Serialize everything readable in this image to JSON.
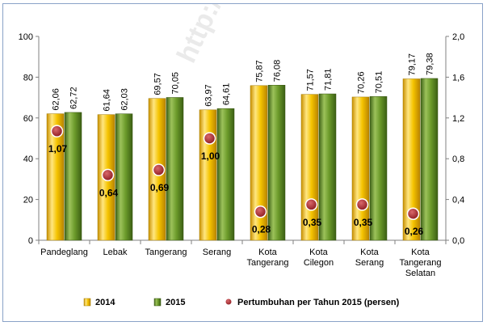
{
  "chart_data": {
    "type": "bar",
    "categories": [
      [
        "Pandeglang"
      ],
      [
        "Lebak"
      ],
      [
        "Tangerang"
      ],
      [
        "Serang"
      ],
      [
        "Kota",
        "Tangerang"
      ],
      [
        "Kota",
        "Cilegon"
      ],
      [
        "Kota",
        "Serang"
      ],
      [
        "Kota",
        "Tangerang",
        "Selatan"
      ]
    ],
    "series": [
      {
        "name": "2014",
        "color": "#f2c21e",
        "axis": "left",
        "values": [
          62.06,
          61.64,
          69.57,
          63.97,
          75.87,
          71.57,
          70.26,
          79.17
        ],
        "labels": [
          "62,06",
          "61,64",
          "69,57",
          "63,97",
          "75,87",
          "71,57",
          "70,26",
          "79,17"
        ]
      },
      {
        "name": "2015",
        "color": "#6f9a2e",
        "axis": "left",
        "values": [
          62.72,
          62.03,
          70.05,
          64.61,
          76.08,
          71.81,
          70.51,
          79.38
        ],
        "labels": [
          "62,72",
          "62,03",
          "70,05",
          "64,61",
          "76,08",
          "71,81",
          "70,51",
          "79,38"
        ]
      },
      {
        "name": "Pertumbuhan per Tahun 2015 (persen)",
        "type": "scatter",
        "color": "#a83236",
        "axis": "right",
        "values": [
          1.07,
          0.64,
          0.69,
          1.0,
          0.28,
          0.35,
          0.35,
          0.26
        ],
        "labels": [
          "1,07",
          "0,64",
          "0,69",
          "1,00",
          "0,28",
          "0,35",
          "0,35",
          "0,26"
        ]
      }
    ],
    "ylim": [
      0,
      100
    ],
    "yticks": [
      "0",
      "20",
      "40",
      "60",
      "80",
      "100"
    ],
    "y2lim": [
      0,
      2.0
    ],
    "y2ticks": [
      "0,0",
      "0,4",
      "0,8",
      "1,2",
      "1,6",
      "2,0"
    ],
    "legend_position": "bottom",
    "watermark": "http://b"
  }
}
